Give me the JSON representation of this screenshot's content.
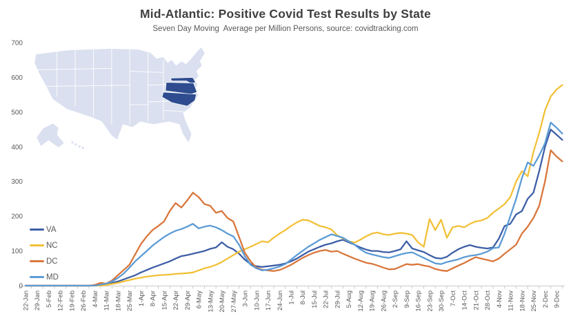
{
  "title": "Mid-Atlantic: Positive Covid Test Results by State",
  "subtitle": "Seven Day Moving  Average per Million Persons, source: covidtracking.com",
  "legend": [
    {
      "label": "VA",
      "color": "#3d5ea6"
    },
    {
      "label": "NC",
      "color": "#f2c037"
    },
    {
      "label": "DC",
      "color": "#d9763b"
    },
    {
      "label": "MD",
      "color": "#5b9bd5"
    }
  ],
  "map": {
    "description": "us-states-map-inset",
    "base_fill": "#dae0ef",
    "state_border_color": "#ffffff",
    "highlight_fill": "#2e4c8f",
    "highlighted_states": [
      "MD",
      "DC",
      "VA",
      "NC"
    ]
  },
  "axis": {
    "line_color": "#c9c9c9",
    "label_color": "#595959",
    "y_ticks": [
      0,
      100,
      200,
      300,
      400,
      500,
      600,
      700
    ]
  },
  "chart_data": {
    "type": "line",
    "title": "Mid-Atlantic: Positive Covid Test Results by State",
    "subtitle": "Seven Day Moving Average per Million Persons, source: covidtracking.com",
    "ylim": [
      0,
      700
    ],
    "grid": false,
    "legend_position": "middle-left",
    "points_per_tick": 2,
    "x_tick_labels": [
      "22-Jan",
      "29-Jan",
      "5-Feb",
      "12-Feb",
      "19-Feb",
      "26-Feb",
      "4-Mar",
      "11-Mar",
      "18-Mar",
      "25-Mar",
      "1-Apr",
      "8-Apr",
      "15-Apr",
      "22-Apr",
      "29-Apr",
      "6-May",
      "13-May",
      "20-May",
      "27-May",
      "3-Jun",
      "10-Jun",
      "17-Jun",
      "24-Jun",
      "1-Jul",
      "8-Jul",
      "15-Jul",
      "22-Jul",
      "29-Jul",
      "5-Aug",
      "12-Aug",
      "19-Aug",
      "26-Aug",
      "2-Sep",
      "9-Sep",
      "16-Sep",
      "23-Sep",
      "30-Sep",
      "7-Oct",
      "14-Oct",
      "21-Oct",
      "28-Oct",
      "4-Nov",
      "11-Nov",
      "18-Nov",
      "25-Nov",
      "2-Dec",
      "9-Dec"
    ],
    "series": [
      {
        "name": "VA",
        "color": "#3d5ea6",
        "values": [
          0,
          0,
          0,
          0,
          0,
          0,
          0,
          0,
          0,
          0,
          0,
          0,
          1,
          2,
          4,
          8,
          12,
          18,
          24,
          30,
          38,
          45,
          52,
          58,
          64,
          70,
          78,
          85,
          88,
          92,
          96,
          100,
          106,
          110,
          125,
          112,
          105,
          92,
          75,
          62,
          56,
          54,
          56,
          58,
          60,
          64,
          70,
          78,
          88,
          98,
          105,
          112,
          118,
          122,
          128,
          132,
          125,
          118,
          110,
          104,
          100,
          100,
          97,
          96,
          100,
          105,
          128,
          107,
          102,
          97,
          88,
          80,
          78,
          83,
          95,
          105,
          112,
          117,
          112,
          109,
          107,
          110,
          135,
          172,
          178,
          205,
          215,
          250,
          268,
          330,
          400,
          450,
          435,
          420
        ]
      },
      {
        "name": "NC",
        "color": "#f2c037",
        "values": [
          0,
          0,
          0,
          0,
          0,
          0,
          0,
          0,
          0,
          0,
          0,
          0,
          0,
          0,
          2,
          5,
          8,
          12,
          16,
          20,
          23,
          26,
          28,
          30,
          31,
          32,
          34,
          35,
          36,
          38,
          44,
          50,
          54,
          60,
          68,
          78,
          88,
          98,
          105,
          112,
          120,
          128,
          125,
          138,
          150,
          160,
          172,
          182,
          190,
          188,
          180,
          172,
          168,
          162,
          145,
          136,
          128,
          124,
          132,
          142,
          150,
          153,
          148,
          146,
          150,
          152,
          150,
          146,
          125,
          112,
          192,
          160,
          190,
          138,
          168,
          172,
          168,
          178,
          185,
          188,
          195,
          210,
          222,
          235,
          255,
          300,
          330,
          315,
          385,
          440,
          505,
          545,
          565,
          578
        ]
      },
      {
        "name": "DC",
        "color": "#d9763b",
        "values": [
          0,
          0,
          0,
          0,
          0,
          0,
          0,
          0,
          0,
          0,
          0,
          0,
          2,
          8,
          6,
          15,
          30,
          45,
          60,
          90,
          120,
          142,
          160,
          172,
          185,
          215,
          238,
          225,
          245,
          268,
          255,
          235,
          230,
          210,
          215,
          195,
          185,
          140,
          95,
          70,
          52,
          46,
          44,
          42,
          45,
          52,
          60,
          70,
          80,
          88,
          95,
          100,
          103,
          98,
          100,
          92,
          85,
          78,
          72,
          66,
          63,
          58,
          52,
          47,
          48,
          55,
          62,
          60,
          62,
          58,
          55,
          48,
          44,
          42,
          50,
          58,
          65,
          74,
          82,
          78,
          74,
          70,
          78,
          92,
          105,
          118,
          150,
          170,
          195,
          230,
          300,
          390,
          372,
          358
        ]
      },
      {
        "name": "MD",
        "color": "#5b9bd5",
        "values": [
          0,
          0,
          0,
          0,
          0,
          0,
          0,
          0,
          0,
          0,
          0,
          0,
          0,
          3,
          6,
          12,
          22,
          35,
          52,
          70,
          85,
          100,
          115,
          128,
          140,
          150,
          158,
          163,
          170,
          178,
          165,
          170,
          173,
          168,
          160,
          150,
          142,
          118,
          85,
          60,
          50,
          44,
          46,
          50,
          55,
          62,
          75,
          88,
          100,
          112,
          122,
          132,
          140,
          148,
          143,
          138,
          128,
          118,
          105,
          95,
          90,
          86,
          82,
          80,
          85,
          90,
          94,
          96,
          88,
          80,
          72,
          64,
          62,
          68,
          72,
          76,
          82,
          86,
          88,
          92,
          98,
          108,
          110,
          150,
          200,
          250,
          310,
          355,
          345,
          375,
          410,
          470,
          455,
          438
        ]
      }
    ]
  }
}
